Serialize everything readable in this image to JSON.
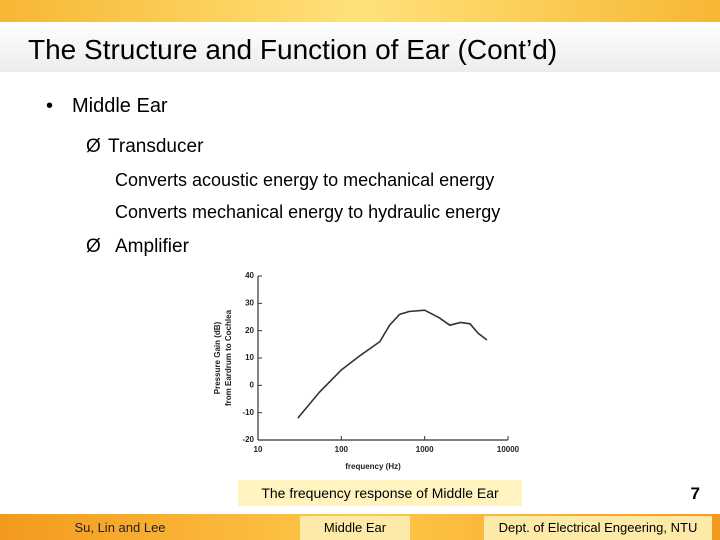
{
  "slide": {
    "title": "The Structure and Function of Ear (Cont’d)",
    "bullets": [
      {
        "text": "Middle Ear",
        "level": 1
      },
      {
        "text": "Transducer",
        "level": 2
      },
      {
        "text": "Converts acoustic energy to mechanical energy",
        "level": 3
      },
      {
        "text": "Converts mechanical energy to hydraulic energy",
        "level": 3
      },
      {
        "text": "Amplifier",
        "level": 2
      }
    ],
    "caption": "The frequency response of Middle Ear",
    "page_number": "7",
    "footer": {
      "left": "Su, Lin and Lee",
      "center": "Middle Ear",
      "right": "Dept. of Electrical Engeering, NTU"
    }
  },
  "chart_data": {
    "type": "line",
    "xlabel": "frequency (Hz)",
    "ylabel": [
      "Pressure Gain (dB)",
      "from Eardrum to Cochlea"
    ],
    "log_x": true,
    "xlim": [
      10,
      10000
    ],
    "xticks": [
      10,
      100,
      1000,
      10000
    ],
    "ylim": [
      -20,
      40
    ],
    "yticks": [
      40,
      30,
      20,
      10,
      0,
      -10,
      -20
    ],
    "color": "#333333",
    "x": [
      30,
      55,
      100,
      170,
      290,
      380,
      500,
      650,
      1000,
      1500,
      2000,
      2700,
      3500,
      4400,
      5600
    ],
    "values": [
      -12,
      -2.4,
      5.6,
      11,
      16,
      22,
      26,
      27,
      27.5,
      24.7,
      22,
      23,
      22.5,
      19,
      16.6
    ]
  }
}
